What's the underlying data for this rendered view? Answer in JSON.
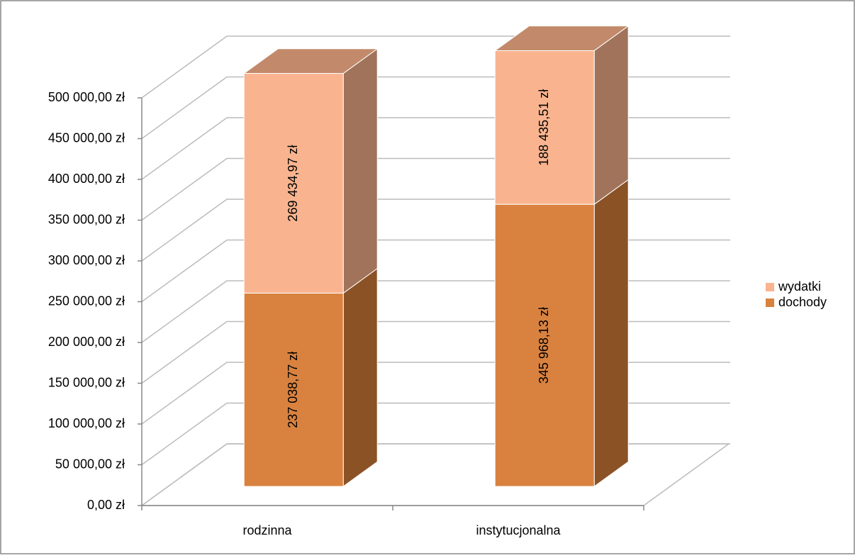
{
  "chart_data": {
    "type": "bar3d_stacked",
    "categories": [
      "rodzinna",
      "instytucjonalna"
    ],
    "series": [
      {
        "name": "dochody",
        "color": "#d9823f",
        "side_color": "#8b5226",
        "top_color": "#b8784c",
        "values": [
          237038.77,
          345968.13
        ],
        "value_labels": [
          "237 038,77 zł",
          "345 968,13 zł"
        ]
      },
      {
        "name": "wydatki",
        "color": "#f9b48f",
        "side_color": "#a0735a",
        "top_color": "#c28a6b",
        "values": [
          269434.97,
          188435.51
        ],
        "value_labels": [
          "269 434,97 zł",
          "188 435,51 zł"
        ]
      }
    ],
    "ylim": [
      0,
      500000
    ],
    "yticks": [
      {
        "value": 0,
        "label": "0,00 zł"
      },
      {
        "value": 50000,
        "label": "50 000,00 zł"
      },
      {
        "value": 100000,
        "label": "100 000,00 zł"
      },
      {
        "value": 150000,
        "label": "150 000,00 zł"
      },
      {
        "value": 200000,
        "label": "200 000,00 zł"
      },
      {
        "value": 250000,
        "label": "250 000,00 zł"
      },
      {
        "value": 300000,
        "label": "300 000,00 zł"
      },
      {
        "value": 350000,
        "label": "350 000,00 zł"
      },
      {
        "value": 400000,
        "label": "400 000,00 zł"
      },
      {
        "value": 450000,
        "label": "450 000,00 zł"
      },
      {
        "value": 500000,
        "label": "500 000,00 zł"
      }
    ],
    "grid": true,
    "legend": "right"
  }
}
